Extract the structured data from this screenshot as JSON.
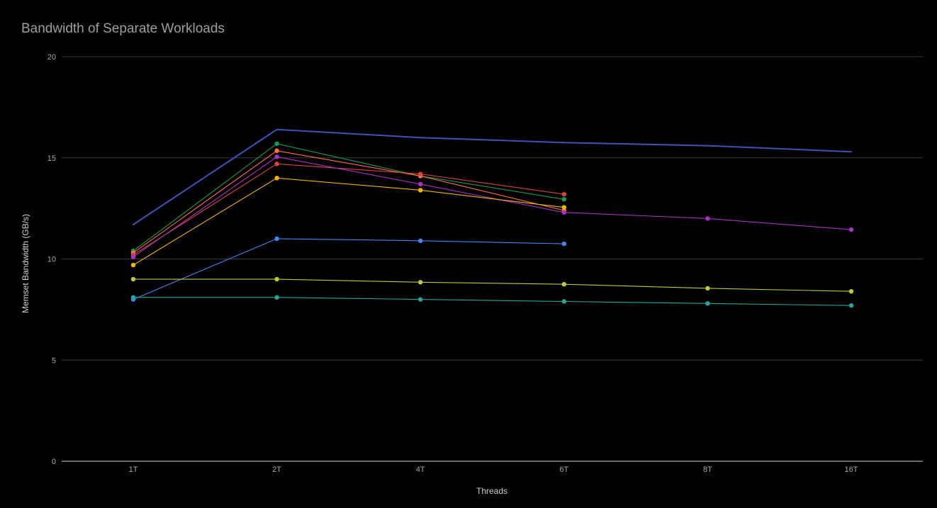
{
  "chart_data": {
    "type": "line",
    "title": "Bandwidth of Separate Workloads",
    "xlabel": "Threads",
    "ylabel": "Memset Bandwidth (GB/s)",
    "categories": [
      "1T",
      "2T",
      "4T",
      "6T",
      "8T",
      "16T"
    ],
    "ylim": [
      0,
      20
    ],
    "yticks": [
      0,
      5,
      10,
      15,
      20
    ],
    "grid": true,
    "legend": "none",
    "series": [
      {
        "color": "#3f51b5",
        "thick": true,
        "markers": false,
        "values": [
          11.7,
          16.4,
          16.0,
          15.75,
          15.6,
          15.3
        ]
      },
      {
        "color": "#0f9d58",
        "markers": true,
        "values": [
          10.4,
          15.7,
          14.1,
          12.95,
          null,
          null
        ]
      },
      {
        "color": "#ff7043",
        "markers": true,
        "values": [
          10.3,
          15.35,
          14.1,
          12.4,
          null,
          null
        ]
      },
      {
        "color": "#db4437",
        "markers": true,
        "values": [
          10.2,
          14.7,
          14.2,
          13.2,
          null,
          null
        ]
      },
      {
        "color": "#ab30c4",
        "markers": true,
        "values": [
          10.1,
          15.05,
          13.7,
          12.3,
          12.0,
          11.45
        ]
      },
      {
        "color": "#f4b400",
        "markers": true,
        "values": [
          9.7,
          14.0,
          13.4,
          12.55,
          null,
          null
        ]
      },
      {
        "color": "#4285f4",
        "markers": true,
        "values": [
          8.0,
          11.0,
          10.9,
          10.75,
          null,
          null
        ]
      },
      {
        "color": "#c0ca33",
        "markers": true,
        "values": [
          9.0,
          9.0,
          8.85,
          8.75,
          8.55,
          8.4
        ]
      },
      {
        "color": "#26a69a",
        "markers": true,
        "values": [
          8.1,
          8.1,
          8.0,
          7.9,
          7.8,
          7.7
        ]
      }
    ]
  }
}
